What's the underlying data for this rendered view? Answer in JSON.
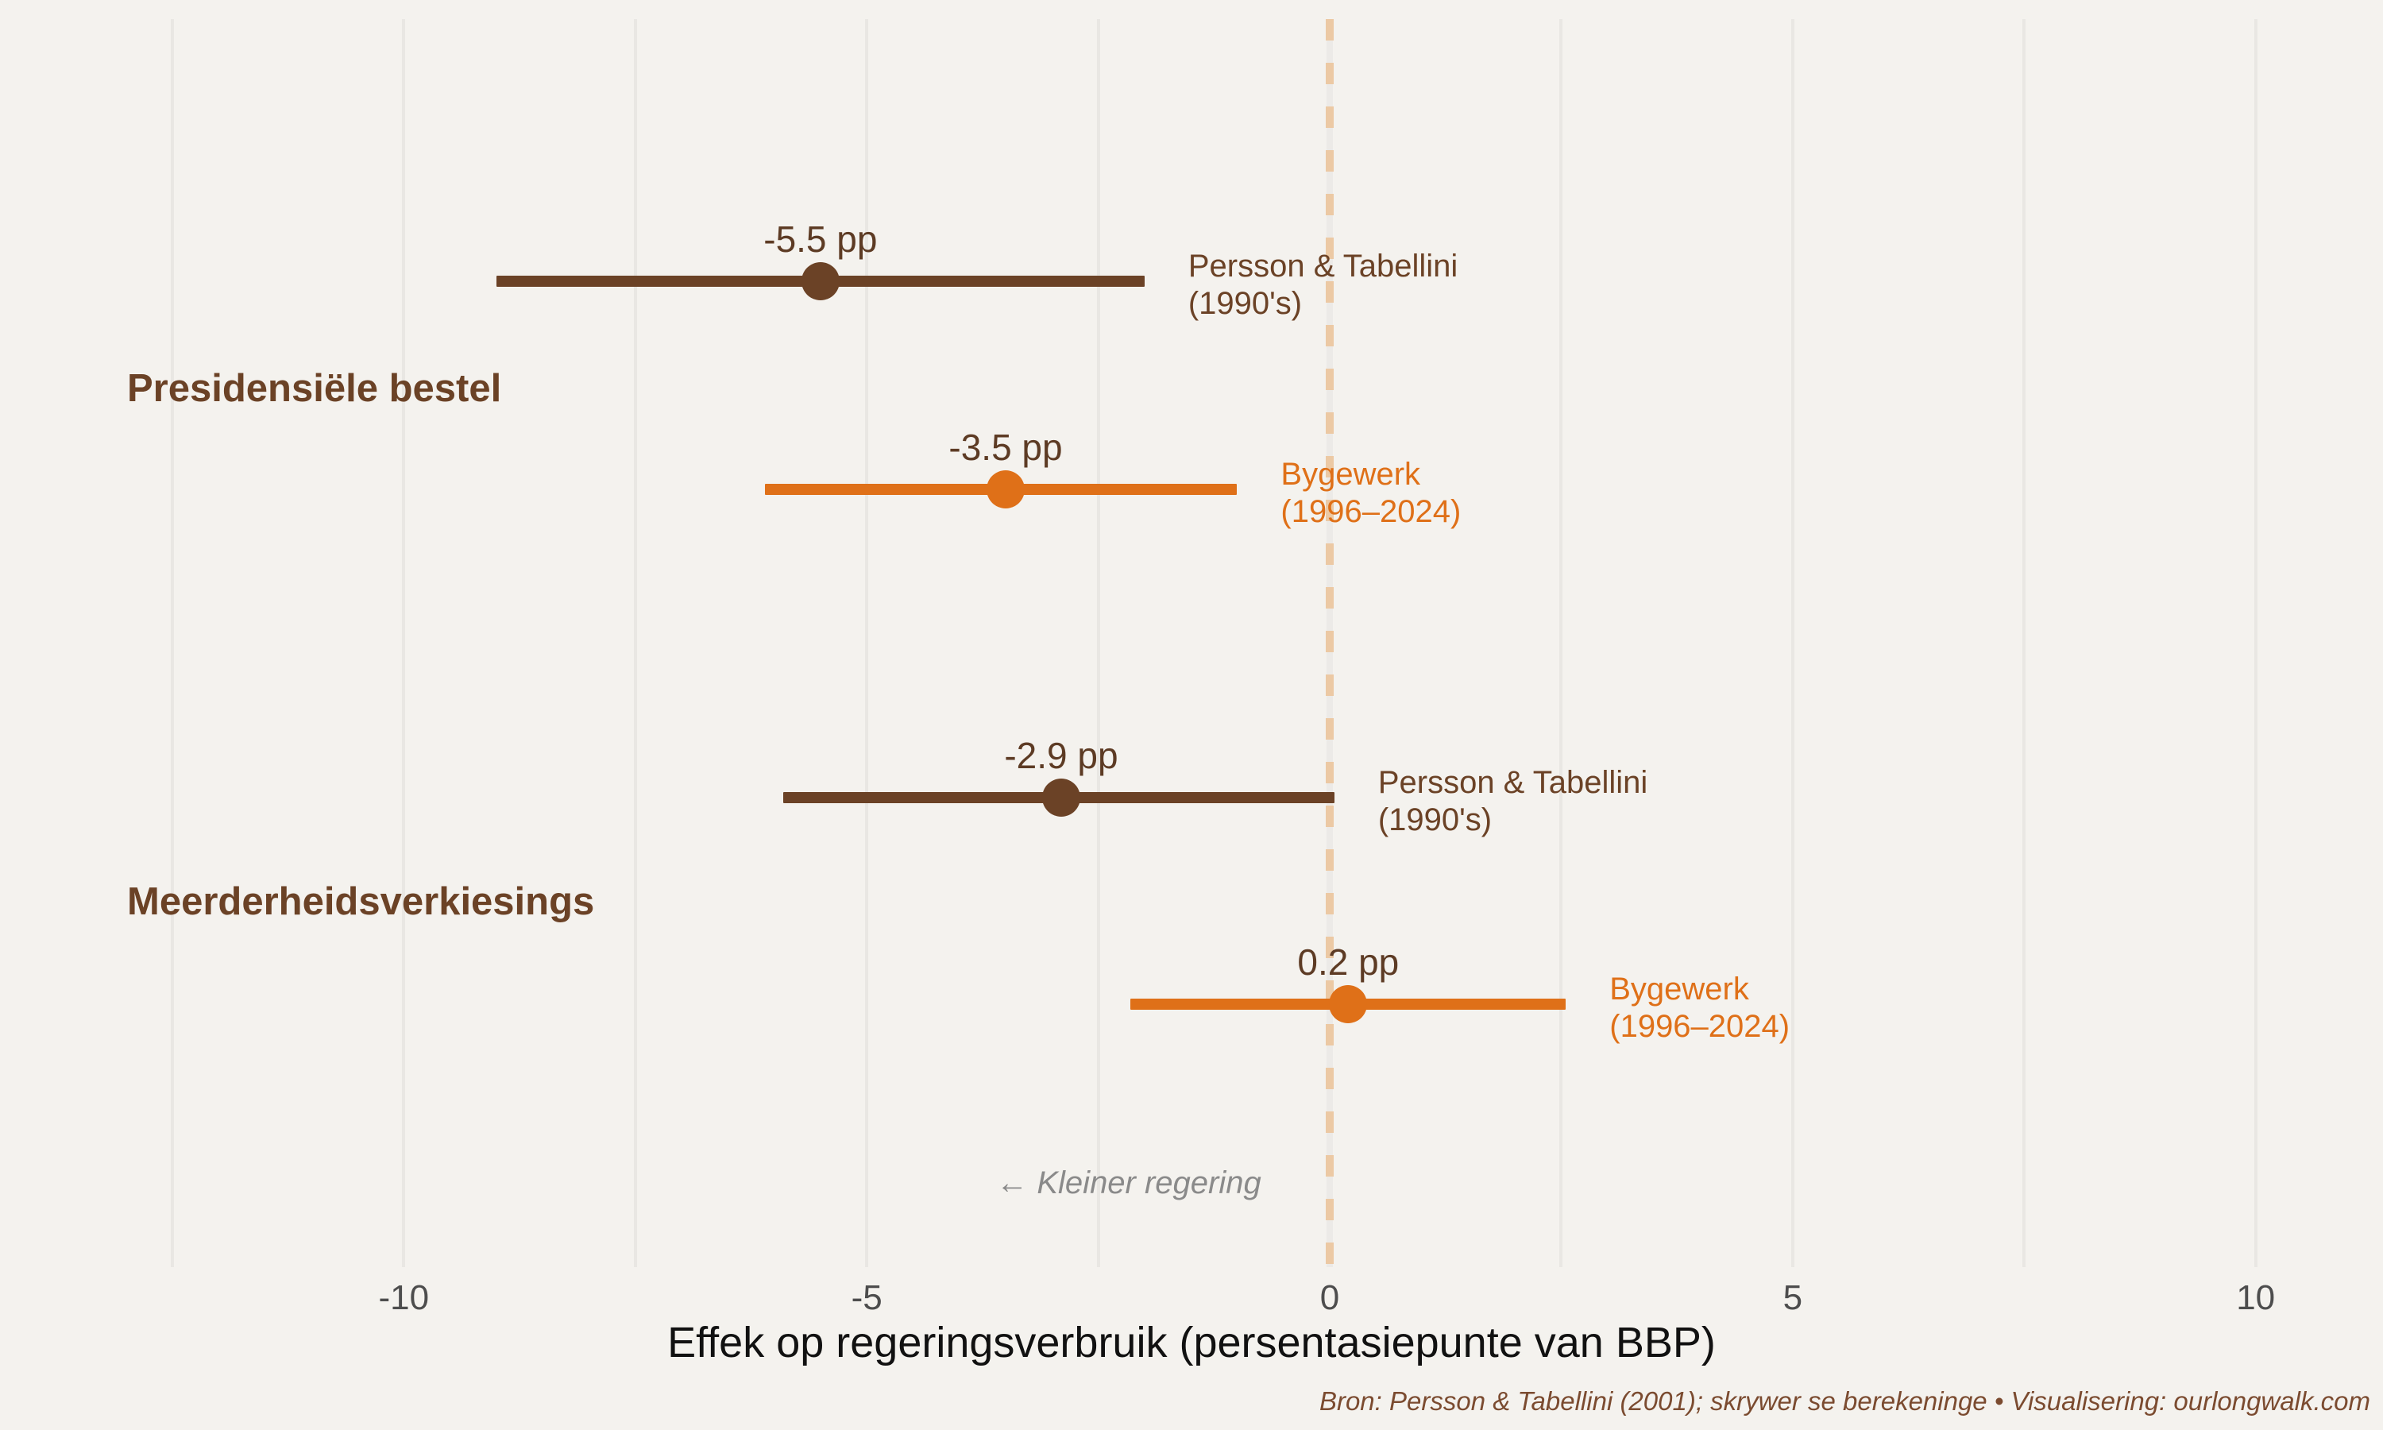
{
  "colors": {
    "background": "#f4f2ee",
    "gridline": "#e9e7e3",
    "zero_line_base": "#eceae7",
    "zero_line_dash": "#ecc9a4",
    "brown": "#6b4226",
    "orange": "#df7018",
    "value_label": "#5d3b24",
    "tick_label": "#4d4d4d",
    "axis_label": "#111111",
    "group_label": "#6b4226",
    "annotation": "#8a8a8a",
    "caption": "#7b4b30"
  },
  "chart_data": {
    "type": "dot-whisker",
    "title": "",
    "xlabel": "Effek op regeringsverbruik (persentasiepunte van BBP)",
    "x_ticks": [
      -10,
      -5,
      0,
      5,
      10
    ],
    "xlim": [
      -12.5,
      10
    ],
    "gridline_step": 2.5,
    "grid": true,
    "zero_reference_line": 0,
    "groups": [
      {
        "label": "Presidensiële bestel"
      },
      {
        "label": "Meerderheidsverkiesings"
      }
    ],
    "rows": [
      {
        "group": "Presidensiële bestel",
        "label": "Persson & Tabellini\n(1990's)",
        "estimate": -5.5,
        "value_label": "-5.5 pp",
        "ci_low": -9.0,
        "ci_high": -2.0,
        "series_color_key": "brown"
      },
      {
        "group": "Presidensiële bestel",
        "label": "Bygewerk\n(1996–2024)",
        "estimate": -3.5,
        "value_label": "-3.5 pp",
        "ci_low": -6.1,
        "ci_high": -1.0,
        "series_color_key": "orange"
      },
      {
        "group": "Meerderheidsverkiesings",
        "label": "Persson & Tabellini\n(1990's)",
        "estimate": -2.9,
        "value_label": "-2.9 pp",
        "ci_low": -5.9,
        "ci_high": 0.05,
        "series_color_key": "brown"
      },
      {
        "group": "Meerderheidsverkiesings",
        "label": "Bygewerk\n(1996–2024)",
        "estimate": 0.2,
        "value_label": "0.2 pp",
        "ci_low": -2.15,
        "ci_high": 2.55,
        "series_color_key": "orange"
      }
    ],
    "annotation": "← Kleiner regering",
    "caption": "Bron: Persson & Tabellini (2001); skrywer se berekeninge • Visualisering: ourlongwalk.com"
  }
}
